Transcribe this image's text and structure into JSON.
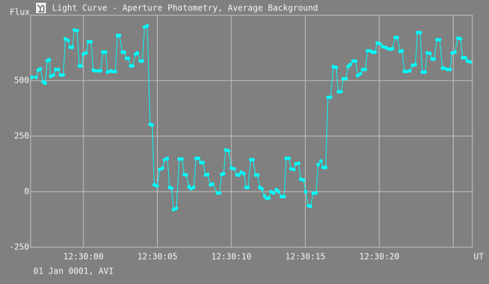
{
  "chart_data": {
    "type": "line",
    "title": "Light Curve - Aperture Photometry, Average Background",
    "y_label": "Flux",
    "x_label": "UT",
    "footer": "01 Jan 0001, AVI",
    "grid": true,
    "xlim": [
      -3.57,
      26.29
    ],
    "ylim": [
      -250,
      794
    ],
    "xticks": [
      {
        "value": 0,
        "label": "12:30:00"
      },
      {
        "value": 5,
        "label": "12:30:05"
      },
      {
        "value": 10,
        "label": "12:30:10"
      },
      {
        "value": 15,
        "label": "12:30:15"
      },
      {
        "value": 20,
        "label": "12:30:20"
      },
      {
        "value": 25,
        "label": null
      }
    ],
    "yticks": [
      -250,
      0,
      250,
      500
    ],
    "x": [
      -3.47,
      -3.19,
      -3.05,
      -2.91,
      -2.72,
      -2.58,
      -2.44,
      -2.3,
      -2.21,
      -2.02,
      -1.88,
      -1.69,
      -1.55,
      -1.36,
      -1.22,
      -1.03,
      -0.89,
      -0.75,
      -0.61,
      -0.42,
      -0.28,
      -0.14,
      0,
      0.19,
      0.33,
      0.52,
      0.66,
      0.8,
      0.99,
      1.17,
      1.31,
      1.5,
      1.64,
      1.83,
      1.97,
      2.16,
      2.3,
      2.44,
      2.63,
      2.77,
      2.91,
      3.05,
      3.19,
      3.33,
      3.52,
      3.66,
      3.85,
      3.99,
      4.13,
      4.32,
      4.51,
      4.65,
      4.79,
      4.98,
      5.16,
      5.35,
      5.49,
      5.68,
      5.82,
      5.96,
      6.1,
      6.29,
      6.48,
      6.67,
      6.81,
      6.95,
      7.14,
      7.28,
      7.46,
      7.61,
      7.79,
      7.93,
      8.08,
      8.26,
      8.4,
      8.59,
      8.73,
      9.06,
      9.2,
      9.34,
      9.48,
      9.62,
      9.81,
      10.0,
      10.19,
      10.38,
      10.52,
      10.66,
      10.85,
      10.99,
      11.13,
      11.31,
      11.46,
      11.64,
      11.78,
      11.92,
      12.07,
      12.25,
      12.39,
      12.54,
      12.68,
      12.86,
      13.05,
      13.19,
      13.38,
      13.57,
      13.71,
      13.9,
      14.04,
      14.23,
      14.37,
      14.55,
      14.69,
      14.88,
      15.02,
      15.21,
      15.35,
      15.54,
      15.73,
      15.87,
      16.06,
      16.2,
      16.38,
      16.53,
      16.71,
      16.9,
      17.09,
      17.23,
      17.42,
      17.56,
      17.75,
      17.89,
      18.03,
      18.22,
      18.4,
      18.54,
      18.73,
      18.87,
      19.06,
      19.2,
      19.39,
      19.53,
      19.72,
      19.86,
      20.05,
      20.23,
      20.42,
      20.56,
      20.75,
      20.89,
      21.08,
      21.22,
      21.41,
      21.55,
      21.69,
      21.88,
      22.07,
      22.25,
      22.44,
      22.58,
      22.77,
      22.91,
      23.1,
      23.24,
      23.43,
      23.57,
      23.71,
      23.9,
      24.08,
      24.27,
      24.41,
      24.6,
      24.79,
      24.93,
      25.12,
      25.31,
      25.49,
      25.63,
      25.82,
      25.96,
      26.15
    ],
    "series": [
      {
        "color": "#00ffff",
        "values": [
          515,
          515,
          547,
          553,
          494,
          488,
          590,
          594,
          519,
          525,
          550,
          550,
          525,
          525,
          688,
          681,
          650,
          650,
          728,
          725,
          566,
          566,
          619,
          625,
          675,
          675,
          547,
          544,
          544,
          544,
          628,
          628,
          538,
          544,
          541,
          541,
          703,
          703,
          628,
          628,
          600,
          600,
          566,
          566,
          619,
          625,
          588,
          588,
          741,
          747,
          303,
          300,
          31,
          25,
          100,
          106,
          144,
          150,
          19,
          16,
          -81,
          -75,
          147,
          147,
          78,
          75,
          22,
          13,
          19,
          150,
          150,
          131,
          131,
          75,
          78,
          31,
          34,
          -6,
          -6,
          78,
          81,
          188,
          184,
          106,
          103,
          75,
          75,
          88,
          81,
          19,
          19,
          144,
          144,
          75,
          75,
          19,
          13,
          -19,
          -31,
          -28,
          0,
          -6,
          9,
          0,
          -22,
          -22,
          150,
          150,
          103,
          100,
          125,
          128,
          56,
          53,
          0,
          -63,
          -66,
          -6,
          -6,
          122,
          138,
          109,
          109,
          425,
          425,
          563,
          559,
          450,
          450,
          509,
          509,
          563,
          572,
          588,
          588,
          522,
          531,
          550,
          550,
          634,
          634,
          628,
          628,
          669,
          666,
          653,
          650,
          644,
          641,
          644,
          694,
          694,
          631,
          634,
          541,
          541,
          544,
          569,
          572,
          716,
          716,
          538,
          538,
          625,
          622,
          597,
          597,
          684,
          684,
          556,
          556,
          550,
          550,
          625,
          628,
          691,
          688,
          603,
          603,
          588,
          584
        ]
      }
    ]
  }
}
